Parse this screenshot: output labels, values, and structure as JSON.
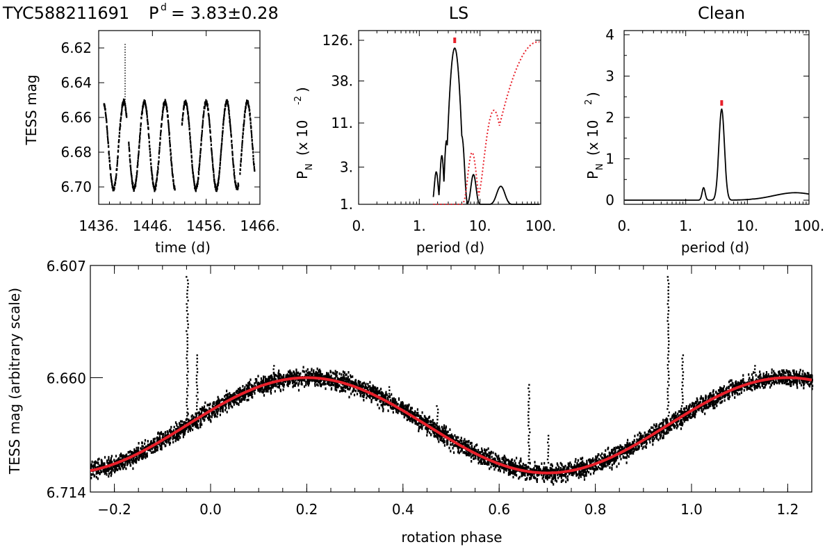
{
  "header": {
    "star": "TYC588211691",
    "period_label": "P",
    "period_sup": "d",
    "period_value": "= 3.83±0.28"
  },
  "chart_data": [
    {
      "id": "lightcurve",
      "type": "scatter",
      "title": "",
      "xlabel": "time (d)",
      "ylabel": "TESS mag",
      "xlim": [
        1436,
        1466
      ],
      "ylim": [
        6.71,
        6.61
      ],
      "x_ticks": [
        "1436.",
        "1446.",
        "1456.",
        "1466."
      ],
      "x_tick_values": [
        1436,
        1446,
        1456,
        1466
      ],
      "y_ticks": [
        "6.62",
        "6.64",
        "6.66",
        "6.68",
        "6.70"
      ],
      "y_tick_values": [
        6.62,
        6.64,
        6.66,
        6.68,
        6.7
      ],
      "segments": [
        [
          1437.0,
          1441.2
        ],
        [
          1441.6,
          1450.2
        ],
        [
          1451.5,
          1462.0
        ],
        [
          1462.3,
          1465.0
        ]
      ],
      "model": {
        "period": 3.83,
        "mean": 6.676,
        "amplitude": 0.025,
        "phase_zero": 1437.8
      },
      "flares": [
        {
          "t": 1440.9,
          "peak": 6.618
        },
        {
          "t": 1448.2,
          "peak": 6.652
        },
        {
          "t": 1459.8,
          "peak": 6.655
        },
        {
          "t": 1462.9,
          "peak": 6.664
        }
      ]
    },
    {
      "id": "ls",
      "type": "line",
      "title": "LS",
      "xlabel": "period (d)",
      "ylabel": "P",
      "ylabel_sub": "N",
      "ylabel_units": "(x 10",
      "ylabel_units_sup": "-2",
      "ylabel_units_close": ")",
      "x_scale": "log",
      "xlim": [
        0.1,
        100
      ],
      "x_ticks": [
        "0.",
        "1.",
        "10.",
        "100."
      ],
      "x_tick_values": [
        0.1,
        1,
        10,
        100
      ],
      "y_scale": "log",
      "ylim": [
        1,
        126
      ],
      "y_ticks": [
        "126.",
        "38.",
        "11.",
        "3.",
        "1."
      ],
      "y_tick_values": [
        126,
        38,
        11,
        3,
        1
      ],
      "marker_period": 3.83,
      "marker_value": 126,
      "series": [
        {
          "name": "periodogram",
          "color": "#000000",
          "style": "solid",
          "peaks": [
            {
              "period": 1.9,
              "value": 2.6,
              "width": 0.025
            },
            {
              "period": 2.35,
              "value": 4.2,
              "width": 0.022
            },
            {
              "period": 2.8,
              "value": 6.5,
              "width": 0.022
            },
            {
              "period": 3.3,
              "value": 4.0,
              "width": 0.02
            },
            {
              "period": 3.83,
              "value": 100,
              "width": 0.05
            },
            {
              "period": 5.0,
              "value": 7.5,
              "width": 0.03
            },
            {
              "period": 7.8,
              "value": 2.4,
              "width": 0.035
            },
            {
              "period": 22.0,
              "value": 1.7,
              "width": 0.06
            }
          ]
        },
        {
          "name": "window function",
          "color": "#e8202a",
          "style": "dotted",
          "peaks": [
            {
              "period": 7.4,
              "value": 4.6,
              "width": 0.05
            },
            {
              "period": 17.0,
              "value": 16,
              "width": 0.09
            },
            {
              "period": 90.0,
              "value": 120,
              "width": 0.28
            }
          ]
        }
      ]
    },
    {
      "id": "clean",
      "type": "line",
      "title": "Clean",
      "xlabel": "period (d)",
      "ylabel": "P",
      "ylabel_sub": "N",
      "ylabel_units": "(x 10",
      "ylabel_units_sup": "2",
      "ylabel_units_close": ")",
      "x_scale": "log",
      "xlim": [
        0.1,
        100
      ],
      "x_ticks": [
        "0.",
        "1.",
        "10.",
        "100."
      ],
      "x_tick_values": [
        0.1,
        1,
        10,
        100
      ],
      "ylim": [
        -0.1,
        4.1
      ],
      "y_ticks": [
        "4",
        "3",
        "2",
        "1",
        "0"
      ],
      "y_tick_values": [
        4,
        3,
        2,
        1,
        0
      ],
      "marker_period": 3.83,
      "marker_value": 2.35,
      "series": [
        {
          "name": "clean",
          "color": "#000000",
          "style": "solid",
          "peaks": [
            {
              "period": 1.95,
              "value": 0.3,
              "width": 0.025
            },
            {
              "period": 3.83,
              "value": 2.2,
              "width": 0.045
            },
            {
              "period": 13.0,
              "value": 0.03,
              "width": 0.08
            },
            {
              "period": 19.0,
              "value": 0.05,
              "width": 0.08
            },
            {
              "period": 60.0,
              "value": 0.18,
              "width": 0.35
            }
          ]
        }
      ]
    },
    {
      "id": "phased",
      "type": "scatter",
      "title": "",
      "xlabel": "rotation phase",
      "ylabel": "TESS mag (arbitrary scale)",
      "xlim": [
        -0.25,
        1.25
      ],
      "x_ticks": [
        "−0.2",
        "0.0",
        "0.2",
        "0.4",
        "0.6",
        "0.8",
        "1.0",
        "1.2"
      ],
      "x_tick_values": [
        -0.2,
        0.0,
        0.2,
        0.4,
        0.6,
        0.8,
        1.0,
        1.2
      ],
      "ylim": [
        6.714,
        6.607
      ],
      "y_ticks": [
        "6.607",
        "6.660",
        "6.714"
      ],
      "y_tick_values": [
        6.607,
        6.66,
        6.714
      ],
      "fit": {
        "color": "#e8202a",
        "mean": 6.6825,
        "amplitude": 0.0225,
        "phase_of_min": 0.2
      },
      "flares": [
        {
          "phase": -0.05,
          "peak": 6.612
        },
        {
          "phase": -0.03,
          "peak": 6.649
        },
        {
          "phase": 0.13,
          "peak": 6.654
        },
        {
          "phase": 0.37,
          "peak": 6.664
        },
        {
          "phase": 0.47,
          "peak": 6.673
        },
        {
          "phase": 0.66,
          "peak": 6.663
        },
        {
          "phase": 0.7,
          "peak": 6.687
        },
        {
          "phase": 0.95,
          "peak": 6.612
        },
        {
          "phase": 0.98,
          "peak": 6.649
        },
        {
          "phase": 1.13,
          "peak": 6.654
        }
      ]
    }
  ]
}
